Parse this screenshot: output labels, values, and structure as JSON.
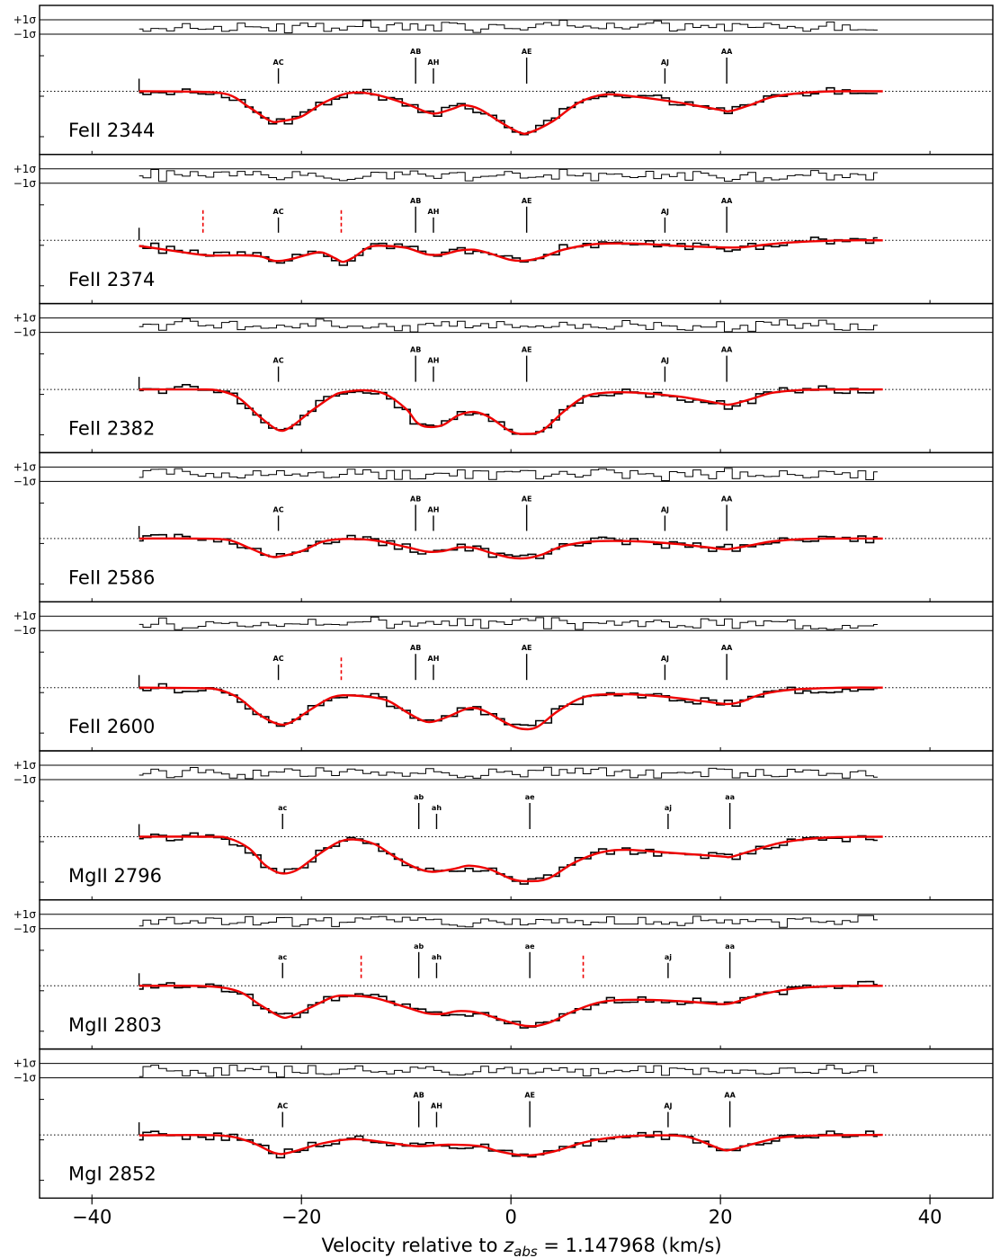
{
  "chart_data": {
    "type": "line",
    "xlabel": "Velocity relative to z_abs = 1.147968 (km/s)",
    "xlabel_parts": {
      "prefix": "Velocity relative to ",
      "symbol": "z",
      "subscript": "abs",
      "suffix": " = 1.147968 (km/s)"
    },
    "xlim": [
      -45,
      46
    ],
    "xticks": [
      -40,
      -20,
      0,
      20,
      40
    ],
    "residual_labels": {
      "plus": "+1σ",
      "minus": "−1σ"
    },
    "colors": {
      "data": "#000000",
      "model": "#ee0000",
      "markers": "#ee0000"
    },
    "panels": [
      {
        "ion": "FeII 2344",
        "components": [
          {
            "label": "AC",
            "v": -22.2
          },
          {
            "label": "AB",
            "v": -9.1
          },
          {
            "label": "AH",
            "v": -7.4
          },
          {
            "label": "AE",
            "v": 1.5
          },
          {
            "label": "AJ",
            "v": 14.7
          },
          {
            "label": "AA",
            "v": 20.6
          }
        ],
        "model": [
          [
            -35.5,
            1.0
          ],
          [
            -30,
            0.99
          ],
          [
            -27,
            0.93
          ],
          [
            -25,
            0.66
          ],
          [
            -23,
            0.37
          ],
          [
            -22,
            0.36
          ],
          [
            -20,
            0.46
          ],
          [
            -18,
            0.74
          ],
          [
            -15.5,
            0.96
          ],
          [
            -13,
            0.93
          ],
          [
            -10,
            0.73
          ],
          [
            -8,
            0.55
          ],
          [
            -7,
            0.53
          ],
          [
            -5.5,
            0.63
          ],
          [
            -4.5,
            0.7
          ],
          [
            -3,
            0.62
          ],
          [
            -1,
            0.34
          ],
          [
            0.8,
            0.12
          ],
          [
            1.8,
            0.12
          ],
          [
            4,
            0.36
          ],
          [
            6.5,
            0.76
          ],
          [
            9,
            0.93
          ],
          [
            12,
            0.88
          ],
          [
            16,
            0.76
          ],
          [
            20,
            0.6
          ],
          [
            21,
            0.58
          ],
          [
            23,
            0.72
          ],
          [
            25,
            0.88
          ],
          [
            28,
            0.97
          ],
          [
            31,
            1.0
          ],
          [
            35.5,
            1.0
          ]
        ]
      },
      {
        "ion": "FeII 2374",
        "components": [
          {
            "label": "AC",
            "v": -22.2
          },
          {
            "label": "AB",
            "v": -9.1
          },
          {
            "label": "AH",
            "v": -7.4
          },
          {
            "label": "AE",
            "v": 1.5
          },
          {
            "label": "AJ",
            "v": 14.7
          },
          {
            "label": "AA",
            "v": 20.6
          }
        ],
        "markers": [
          -29.4,
          -16.2
        ],
        "model": [
          [
            -35.5,
            0.88
          ],
          [
            -32,
            0.77
          ],
          [
            -29,
            0.68
          ],
          [
            -26,
            0.68
          ],
          [
            -24,
            0.66
          ],
          [
            -22.5,
            0.56
          ],
          [
            -21,
            0.6
          ],
          [
            -19,
            0.72
          ],
          [
            -18,
            0.74
          ],
          [
            -16.8,
            0.62
          ],
          [
            -16,
            0.54
          ],
          [
            -15,
            0.64
          ],
          [
            -13.5,
            0.86
          ],
          [
            -12,
            0.88
          ],
          [
            -10,
            0.84
          ],
          [
            -8,
            0.7
          ],
          [
            -6.5,
            0.7
          ],
          [
            -5,
            0.78
          ],
          [
            -3.5,
            0.8
          ],
          [
            -2,
            0.72
          ],
          [
            0,
            0.58
          ],
          [
            1.5,
            0.57
          ],
          [
            3,
            0.64
          ],
          [
            5,
            0.8
          ],
          [
            8,
            0.92
          ],
          [
            12,
            0.93
          ],
          [
            16,
            0.88
          ],
          [
            20,
            0.85
          ],
          [
            22,
            0.85
          ],
          [
            24,
            0.9
          ],
          [
            27,
            0.96
          ],
          [
            32,
            1.0
          ],
          [
            35.5,
            1.0
          ]
        ]
      },
      {
        "ion": "FeII 2382",
        "components": [
          {
            "label": "AC",
            "v": -22.2
          },
          {
            "label": "AB",
            "v": -9.1
          },
          {
            "label": "AH",
            "v": -7.4
          },
          {
            "label": "AE",
            "v": 1.5
          },
          {
            "label": "AJ",
            "v": 14.7
          },
          {
            "label": "AA",
            "v": 20.6
          }
        ],
        "model": [
          [
            -35.5,
            1.0
          ],
          [
            -30,
            1.0
          ],
          [
            -28,
            0.98
          ],
          [
            -26,
            0.82
          ],
          [
            -24,
            0.42
          ],
          [
            -22.2,
            0.13
          ],
          [
            -21,
            0.2
          ],
          [
            -19,
            0.55
          ],
          [
            -17,
            0.86
          ],
          [
            -16,
            0.94
          ],
          [
            -14,
            0.98
          ],
          [
            -12,
            0.9
          ],
          [
            -10,
            0.58
          ],
          [
            -9,
            0.3
          ],
          [
            -8,
            0.2
          ],
          [
            -6.5,
            0.24
          ],
          [
            -5,
            0.45
          ],
          [
            -3.5,
            0.52
          ],
          [
            -2,
            0.4
          ],
          [
            0,
            0.1
          ],
          [
            1.5,
            0.05
          ],
          [
            3,
            0.12
          ],
          [
            5,
            0.52
          ],
          [
            7,
            0.84
          ],
          [
            9,
            0.93
          ],
          [
            12,
            0.93
          ],
          [
            16,
            0.85
          ],
          [
            20,
            0.7
          ],
          [
            21,
            0.68
          ],
          [
            23,
            0.8
          ],
          [
            25,
            0.93
          ],
          [
            28,
            0.99
          ],
          [
            32,
            1.0
          ],
          [
            35.5,
            1.0
          ]
        ]
      },
      {
        "ion": "FeII 2586",
        "components": [
          {
            "label": "AC",
            "v": -22.2
          },
          {
            "label": "AB",
            "v": -9.1
          },
          {
            "label": "AH",
            "v": -7.4
          },
          {
            "label": "AE",
            "v": 1.5
          },
          {
            "label": "AJ",
            "v": 14.7
          },
          {
            "label": "AA",
            "v": 20.6
          }
        ],
        "model": [
          [
            -35.5,
            1.0
          ],
          [
            -30,
            1.0
          ],
          [
            -27,
            0.97
          ],
          [
            -25,
            0.8
          ],
          [
            -23,
            0.62
          ],
          [
            -22,
            0.62
          ],
          [
            -20,
            0.73
          ],
          [
            -18,
            0.93
          ],
          [
            -16,
            0.99
          ],
          [
            -13,
            0.96
          ],
          [
            -10,
            0.82
          ],
          [
            -8,
            0.72
          ],
          [
            -6.5,
            0.73
          ],
          [
            -5,
            0.81
          ],
          [
            -3.5,
            0.8
          ],
          [
            -2,
            0.7
          ],
          [
            0,
            0.59
          ],
          [
            1.5,
            0.58
          ],
          [
            3,
            0.66
          ],
          [
            5,
            0.84
          ],
          [
            8,
            0.94
          ],
          [
            12,
            0.94
          ],
          [
            16,
            0.88
          ],
          [
            20,
            0.78
          ],
          [
            21,
            0.78
          ],
          [
            23,
            0.86
          ],
          [
            25,
            0.94
          ],
          [
            28,
            0.99
          ],
          [
            32,
            1.0
          ],
          [
            35.5,
            1.0
          ]
        ]
      },
      {
        "ion": "FeII 2600",
        "components": [
          {
            "label": "AC",
            "v": -22.2
          },
          {
            "label": "AB",
            "v": -9.1
          },
          {
            "label": "AH",
            "v": -7.4
          },
          {
            "label": "AE",
            "v": 1.5
          },
          {
            "label": "AJ",
            "v": 14.7
          },
          {
            "label": "AA",
            "v": 20.6
          }
        ],
        "markers": [
          -16.2
        ],
        "model": [
          [
            -35.5,
            1.0
          ],
          [
            -30,
            0.99
          ],
          [
            -28,
            0.96
          ],
          [
            -26,
            0.78
          ],
          [
            -24,
            0.42
          ],
          [
            -22.2,
            0.22
          ],
          [
            -21,
            0.26
          ],
          [
            -19,
            0.55
          ],
          [
            -17,
            0.8
          ],
          [
            -15,
            0.83
          ],
          [
            -12,
            0.74
          ],
          [
            -10,
            0.48
          ],
          [
            -8.5,
            0.3
          ],
          [
            -7.5,
            0.27
          ],
          [
            -6,
            0.38
          ],
          [
            -4,
            0.56
          ],
          [
            -2.5,
            0.5
          ],
          [
            -0.5,
            0.25
          ],
          [
            1,
            0.12
          ],
          [
            2.5,
            0.16
          ],
          [
            4.5,
            0.5
          ],
          [
            7,
            0.8
          ],
          [
            10,
            0.86
          ],
          [
            14,
            0.82
          ],
          [
            18,
            0.72
          ],
          [
            20.5,
            0.65
          ],
          [
            22,
            0.7
          ],
          [
            24,
            0.86
          ],
          [
            27,
            0.96
          ],
          [
            32,
            1.0
          ],
          [
            35.5,
            1.0
          ]
        ]
      },
      {
        "ion": "MgII 2796",
        "components": [
          {
            "label": "ac",
            "v": -21.8
          },
          {
            "label": "ab",
            "v": -8.8
          },
          {
            "label": "ah",
            "v": -7.1
          },
          {
            "label": "ae",
            "v": 1.8
          },
          {
            "label": "aj",
            "v": 15.0
          },
          {
            "label": "aa",
            "v": 20.9
          }
        ],
        "model": [
          [
            -35.5,
            1.0
          ],
          [
            -29,
            1.0
          ],
          [
            -27,
            0.97
          ],
          [
            -25,
            0.75
          ],
          [
            -23.5,
            0.4
          ],
          [
            -22,
            0.22
          ],
          [
            -20.5,
            0.28
          ],
          [
            -18.5,
            0.6
          ],
          [
            -16.5,
            0.88
          ],
          [
            -15,
            0.94
          ],
          [
            -13,
            0.84
          ],
          [
            -11,
            0.56
          ],
          [
            -9,
            0.33
          ],
          [
            -7.5,
            0.25
          ],
          [
            -5.5,
            0.31
          ],
          [
            -4,
            0.38
          ],
          [
            -2,
            0.3
          ],
          [
            0,
            0.1
          ],
          [
            1.5,
            0.05
          ],
          [
            3.5,
            0.1
          ],
          [
            6,
            0.44
          ],
          [
            8.5,
            0.66
          ],
          [
            11,
            0.72
          ],
          [
            15,
            0.66
          ],
          [
            20,
            0.58
          ],
          [
            21,
            0.57
          ],
          [
            23,
            0.7
          ],
          [
            26,
            0.88
          ],
          [
            30,
            0.98
          ],
          [
            35.5,
            1.0
          ]
        ]
      },
      {
        "ion": "MgII 2803",
        "components": [
          {
            "label": "ac",
            "v": -21.8
          },
          {
            "label": "ab",
            "v": -8.8
          },
          {
            "label": "ah",
            "v": -7.1
          },
          {
            "label": "ae",
            "v": 1.8
          },
          {
            "label": "aj",
            "v": 15.0
          },
          {
            "label": "aa",
            "v": 20.9
          }
        ],
        "markers": [
          -14.3,
          6.9
        ],
        "model": [
          [
            -35.5,
            1.0
          ],
          [
            -29,
            0.99
          ],
          [
            -26,
            0.88
          ],
          [
            -24,
            0.6
          ],
          [
            -22,
            0.34
          ],
          [
            -21,
            0.35
          ],
          [
            -19,
            0.55
          ],
          [
            -17,
            0.76
          ],
          [
            -15.5,
            0.79
          ],
          [
            -13,
            0.74
          ],
          [
            -10,
            0.54
          ],
          [
            -8,
            0.41
          ],
          [
            -6.5,
            0.4
          ],
          [
            -5,
            0.46
          ],
          [
            -3,
            0.42
          ],
          [
            -1,
            0.28
          ],
          [
            1.5,
            0.14
          ],
          [
            3.5,
            0.2
          ],
          [
            6,
            0.46
          ],
          [
            9,
            0.67
          ],
          [
            13,
            0.7
          ],
          [
            17,
            0.66
          ],
          [
            20.5,
            0.61
          ],
          [
            23,
            0.76
          ],
          [
            26,
            0.91
          ],
          [
            30,
            0.99
          ],
          [
            35.5,
            1.0
          ]
        ]
      },
      {
        "ion": "MgI 2852",
        "components": [
          {
            "label": "AC",
            "v": -21.8
          },
          {
            "label": "AB",
            "v": -8.8
          },
          {
            "label": "AH",
            "v": -7.1
          },
          {
            "label": "AE",
            "v": 1.8
          },
          {
            "label": "AJ",
            "v": 15.0
          },
          {
            "label": "AA",
            "v": 20.9
          }
        ],
        "model": [
          [
            -35.5,
            0.99
          ],
          [
            -28,
            0.99
          ],
          [
            -25,
            0.86
          ],
          [
            -22.5,
            0.61
          ],
          [
            -21,
            0.63
          ],
          [
            -18,
            0.82
          ],
          [
            -15,
            0.91
          ],
          [
            -12,
            0.84
          ],
          [
            -9,
            0.76
          ],
          [
            -6,
            0.79
          ],
          [
            -3,
            0.76
          ],
          [
            -1,
            0.64
          ],
          [
            1.5,
            0.56
          ],
          [
            4,
            0.64
          ],
          [
            7,
            0.84
          ],
          [
            10,
            0.95
          ],
          [
            14,
            0.99
          ],
          [
            17,
            0.95
          ],
          [
            20,
            0.7
          ],
          [
            21,
            0.68
          ],
          [
            23,
            0.8
          ],
          [
            26,
            0.95
          ],
          [
            30,
            0.99
          ],
          [
            35.5,
            1.0
          ]
        ]
      }
    ]
  }
}
